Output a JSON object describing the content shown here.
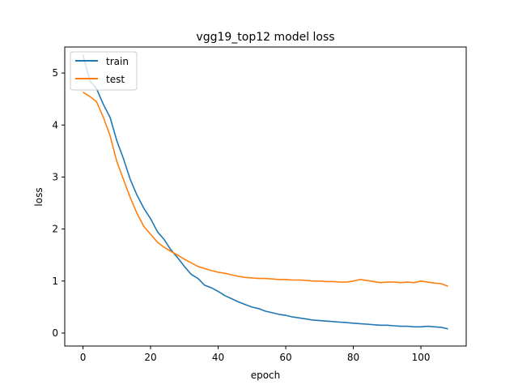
{
  "chart_data": {
    "type": "line",
    "title": "vgg19_top12 model loss",
    "xlabel": "epoch",
    "ylabel": "loss",
    "xlim": [
      -5.4,
      113.4
    ],
    "ylim": [
      -0.25,
      5.5
    ],
    "xticks": [
      0,
      20,
      40,
      60,
      80,
      100
    ],
    "yticks": [
      0,
      1,
      2,
      3,
      4,
      5
    ],
    "grid": false,
    "legend_position": "top-left",
    "series": [
      {
        "name": "train",
        "color": "#1f77b4",
        "x": [
          0,
          2,
          4,
          6,
          8,
          10,
          12,
          14,
          16,
          18,
          20,
          22,
          24,
          26,
          28,
          30,
          32,
          34,
          36,
          38,
          40,
          42,
          44,
          46,
          48,
          50,
          52,
          54,
          56,
          58,
          60,
          62,
          64,
          66,
          68,
          70,
          72,
          74,
          76,
          78,
          80,
          82,
          84,
          86,
          88,
          90,
          92,
          94,
          96,
          98,
          100,
          102,
          104,
          106,
          108
        ],
        "values": [
          5.35,
          4.85,
          4.7,
          4.4,
          4.15,
          3.7,
          3.35,
          2.95,
          2.65,
          2.4,
          2.2,
          1.95,
          1.8,
          1.6,
          1.45,
          1.28,
          1.13,
          1.05,
          0.92,
          0.87,
          0.8,
          0.72,
          0.66,
          0.6,
          0.55,
          0.5,
          0.47,
          0.42,
          0.39,
          0.36,
          0.34,
          0.31,
          0.29,
          0.27,
          0.25,
          0.24,
          0.23,
          0.22,
          0.21,
          0.2,
          0.19,
          0.18,
          0.17,
          0.16,
          0.15,
          0.15,
          0.14,
          0.13,
          0.13,
          0.12,
          0.12,
          0.13,
          0.12,
          0.11,
          0.08
        ]
      },
      {
        "name": "test",
        "color": "#ff7f0e",
        "x": [
          0,
          2,
          4,
          6,
          8,
          10,
          12,
          14,
          16,
          18,
          20,
          22,
          24,
          26,
          28,
          30,
          32,
          34,
          36,
          38,
          40,
          42,
          44,
          46,
          48,
          50,
          52,
          54,
          56,
          58,
          60,
          62,
          64,
          66,
          68,
          70,
          72,
          74,
          76,
          78,
          80,
          82,
          84,
          86,
          88,
          90,
          92,
          94,
          96,
          98,
          100,
          102,
          104,
          106,
          108
        ],
        "values": [
          4.63,
          4.55,
          4.45,
          4.15,
          3.8,
          3.3,
          2.95,
          2.6,
          2.3,
          2.05,
          1.9,
          1.75,
          1.65,
          1.57,
          1.5,
          1.42,
          1.35,
          1.28,
          1.24,
          1.2,
          1.17,
          1.15,
          1.12,
          1.09,
          1.07,
          1.06,
          1.05,
          1.05,
          1.04,
          1.03,
          1.03,
          1.02,
          1.02,
          1.01,
          1.0,
          1.0,
          0.99,
          0.99,
          0.98,
          0.98,
          1.0,
          1.03,
          1.01,
          0.99,
          0.97,
          0.98,
          0.98,
          0.97,
          0.98,
          0.97,
          1.0,
          0.98,
          0.96,
          0.95,
          0.9
        ]
      }
    ]
  }
}
